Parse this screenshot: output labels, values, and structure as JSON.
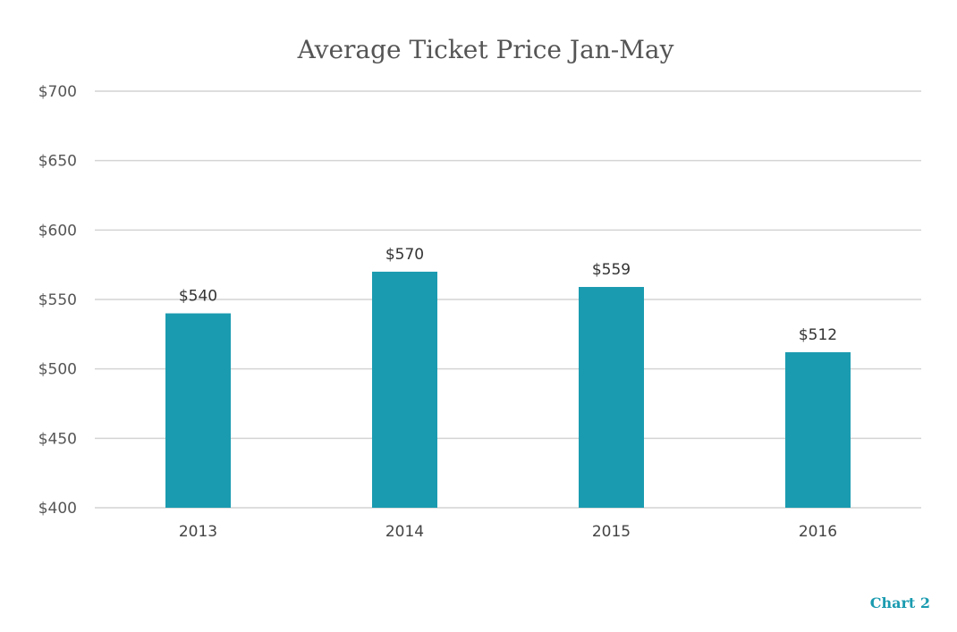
{
  "chart_data": {
    "type": "bar",
    "title": "Average Ticket Price Jan-May",
    "xlabel": "",
    "ylabel": "",
    "categories": [
      "2013",
      "2014",
      "2015",
      "2016"
    ],
    "values": [
      540,
      570,
      559,
      512
    ],
    "data_labels": [
      "$540",
      "$570",
      "$559",
      "$512"
    ],
    "ylim": [
      400,
      700
    ],
    "y_ticks": [
      400,
      450,
      500,
      550,
      600,
      650,
      700
    ],
    "y_tick_labels": [
      "$400",
      "$450",
      "$500",
      "$550",
      "$600",
      "$650",
      "$700"
    ],
    "grid": true,
    "legend": "none",
    "bar_color": "#1a9bb0"
  },
  "footer": {
    "label": "Chart 2"
  }
}
